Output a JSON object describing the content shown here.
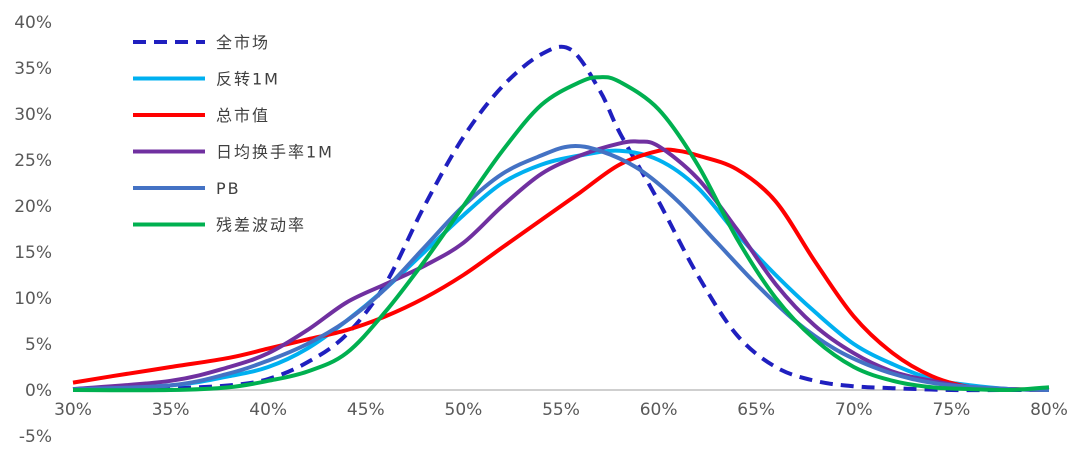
{
  "chart_data": {
    "type": "line",
    "title": "",
    "xlabel": "",
    "ylabel": "",
    "xlim": [
      30,
      80
    ],
    "ylim": [
      -5,
      40
    ],
    "x_ticks": [
      "30%",
      "35%",
      "40%",
      "45%",
      "50%",
      "55%",
      "60%",
      "65%",
      "70%",
      "75%",
      "80%"
    ],
    "y_ticks": [
      "-5%",
      "0%",
      "5%",
      "10%",
      "15%",
      "20%",
      "25%",
      "30%",
      "35%",
      "40%"
    ],
    "grid": false,
    "legend_position": "top-left",
    "series": [
      {
        "name": "全市场",
        "color": "#1f1fbf",
        "dash": "dashed",
        "points": [
          [
            30,
            0.1
          ],
          [
            35,
            0.2
          ],
          [
            38,
            0.5
          ],
          [
            40,
            1.2
          ],
          [
            42,
            3.0
          ],
          [
            44,
            6.0
          ],
          [
            46,
            11.5
          ],
          [
            48,
            20.0
          ],
          [
            50,
            27.5
          ],
          [
            52,
            33.0
          ],
          [
            54,
            36.5
          ],
          [
            55.5,
            37.0
          ],
          [
            57,
            32.5
          ],
          [
            58,
            28.0
          ],
          [
            60,
            20.5
          ],
          [
            62,
            12.5
          ],
          [
            64,
            6.0
          ],
          [
            66,
            2.5
          ],
          [
            68,
            1.0
          ],
          [
            70,
            0.4
          ],
          [
            72,
            0.2
          ],
          [
            75,
            0.0
          ],
          [
            78,
            0.0
          ],
          [
            80,
            0.0
          ]
        ]
      },
      {
        "name": "反转1M",
        "color": "#00b0f0",
        "dash": "solid",
        "points": [
          [
            30,
            0.1
          ],
          [
            35,
            0.5
          ],
          [
            38,
            1.5
          ],
          [
            40,
            2.5
          ],
          [
            42,
            4.5
          ],
          [
            44,
            7.5
          ],
          [
            46,
            11.0
          ],
          [
            48,
            15.0
          ],
          [
            50,
            19.0
          ],
          [
            52,
            22.5
          ],
          [
            54,
            24.5
          ],
          [
            56,
            25.5
          ],
          [
            58,
            26.0
          ],
          [
            60,
            25.0
          ],
          [
            62,
            22.0
          ],
          [
            64,
            17.0
          ],
          [
            66,
            12.5
          ],
          [
            68,
            8.5
          ],
          [
            70,
            5.0
          ],
          [
            72,
            2.8
          ],
          [
            74,
            1.2
          ],
          [
            76,
            0.5
          ],
          [
            78,
            0.1
          ],
          [
            80,
            0.0
          ]
        ]
      },
      {
        "name": "总市值",
        "color": "#ff0000",
        "dash": "solid",
        "points": [
          [
            30,
            0.8
          ],
          [
            32,
            1.5
          ],
          [
            35,
            2.5
          ],
          [
            38,
            3.5
          ],
          [
            40,
            4.5
          ],
          [
            42,
            5.5
          ],
          [
            44,
            6.5
          ],
          [
            46,
            8.0
          ],
          [
            48,
            10.0
          ],
          [
            50,
            12.5
          ],
          [
            52,
            15.5
          ],
          [
            54,
            18.5
          ],
          [
            56,
            21.5
          ],
          [
            58,
            24.5
          ],
          [
            60,
            26.0
          ],
          [
            61,
            26.0
          ],
          [
            62,
            25.5
          ],
          [
            64,
            24.0
          ],
          [
            66,
            20.5
          ],
          [
            68,
            14.0
          ],
          [
            70,
            8.0
          ],
          [
            72,
            4.0
          ],
          [
            74,
            1.5
          ],
          [
            76,
            0.3
          ],
          [
            78,
            0.1
          ],
          [
            80,
            0.0
          ]
        ]
      },
      {
        "name": "日均换手率1M",
        "color": "#7030a0",
        "dash": "solid",
        "points": [
          [
            30,
            0.1
          ],
          [
            35,
            1.0
          ],
          [
            38,
            2.5
          ],
          [
            40,
            4.0
          ],
          [
            42,
            6.5
          ],
          [
            44,
            9.5
          ],
          [
            46,
            11.5
          ],
          [
            48,
            13.5
          ],
          [
            50,
            16.0
          ],
          [
            52,
            20.0
          ],
          [
            54,
            23.5
          ],
          [
            56,
            25.5
          ],
          [
            58,
            26.8
          ],
          [
            59,
            27.0
          ],
          [
            60,
            26.5
          ],
          [
            62,
            23.0
          ],
          [
            64,
            17.5
          ],
          [
            66,
            11.5
          ],
          [
            68,
            7.0
          ],
          [
            70,
            4.0
          ],
          [
            72,
            2.0
          ],
          [
            74,
            1.0
          ],
          [
            76,
            0.3
          ],
          [
            78,
            0.1
          ],
          [
            80,
            0.0
          ]
        ]
      },
      {
        "name": "PB",
        "color": "#4472c4",
        "dash": "solid",
        "points": [
          [
            30,
            0.1
          ],
          [
            35,
            0.5
          ],
          [
            38,
            1.8
          ],
          [
            40,
            3.2
          ],
          [
            42,
            5.0
          ],
          [
            44,
            7.5
          ],
          [
            46,
            11.0
          ],
          [
            48,
            15.5
          ],
          [
            50,
            20.0
          ],
          [
            52,
            23.5
          ],
          [
            54,
            25.5
          ],
          [
            55.5,
            26.5
          ],
          [
            57,
            26.0
          ],
          [
            59,
            24.0
          ],
          [
            61,
            20.5
          ],
          [
            63,
            16.0
          ],
          [
            65,
            11.5
          ],
          [
            67,
            7.5
          ],
          [
            69,
            4.5
          ],
          [
            71,
            2.5
          ],
          [
            73,
            1.2
          ],
          [
            75,
            0.5
          ],
          [
            78,
            0.1
          ],
          [
            80,
            0.0
          ]
        ]
      },
      {
        "name": "残差波动率",
        "color": "#00b050",
        "dash": "solid",
        "points": [
          [
            30,
            0.0
          ],
          [
            35,
            0.0
          ],
          [
            38,
            0.3
          ],
          [
            40,
            1.0
          ],
          [
            42,
            2.0
          ],
          [
            44,
            4.0
          ],
          [
            46,
            8.5
          ],
          [
            48,
            14.0
          ],
          [
            50,
            20.0
          ],
          [
            52,
            26.0
          ],
          [
            54,
            31.0
          ],
          [
            56,
            33.5
          ],
          [
            57,
            34.0
          ],
          [
            58,
            33.5
          ],
          [
            60,
            30.5
          ],
          [
            62,
            24.5
          ],
          [
            64,
            16.5
          ],
          [
            66,
            10.0
          ],
          [
            68,
            5.5
          ],
          [
            70,
            2.5
          ],
          [
            72,
            1.0
          ],
          [
            74,
            0.3
          ],
          [
            76,
            0.1
          ],
          [
            78,
            0.0
          ],
          [
            80,
            0.3
          ]
        ]
      }
    ]
  }
}
